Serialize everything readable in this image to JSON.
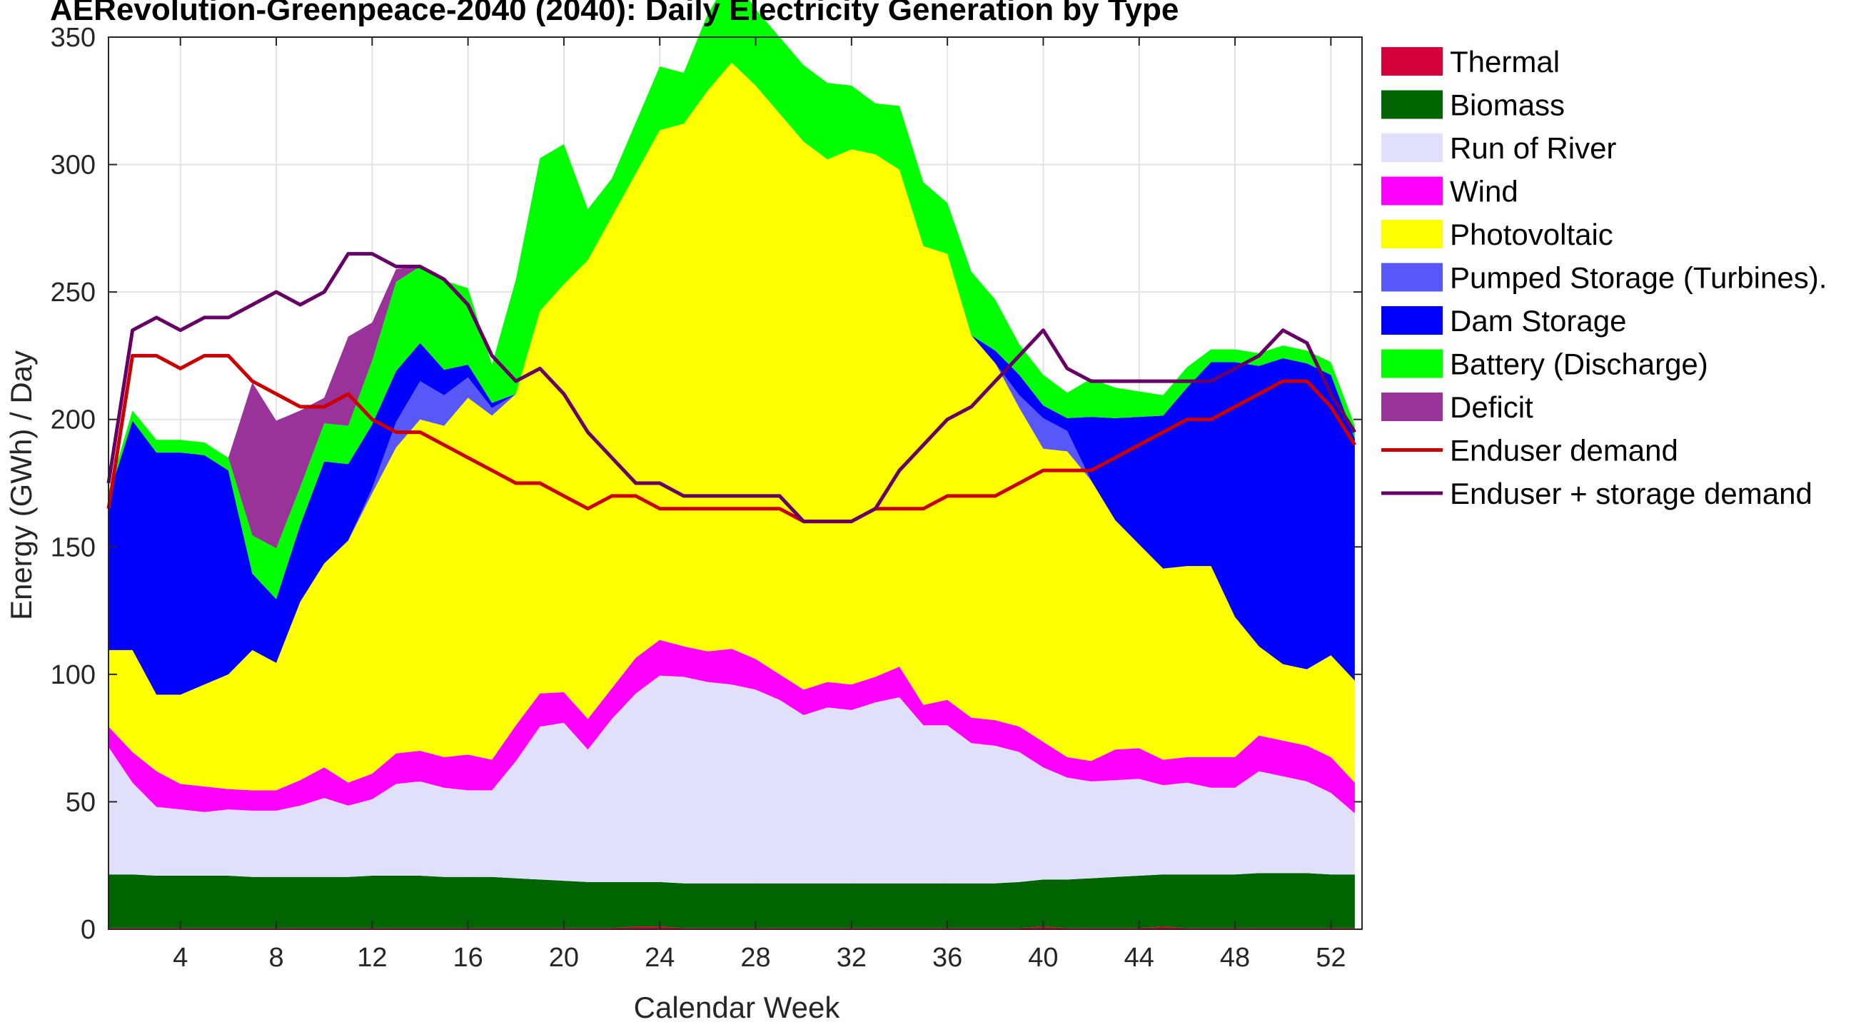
{
  "chart_data": {
    "type": "area",
    "title": "AERevolution-Greenpeace-2040 (2040): Daily Electricity Generation by Type",
    "xlabel": "Calendar Week",
    "ylabel": "Energy (GWh) / Day",
    "xlim": [
      1,
      53.3
    ],
    "ylim": [
      0,
      350
    ],
    "xticks": [
      4,
      8,
      12,
      16,
      20,
      24,
      28,
      32,
      36,
      40,
      44,
      48,
      52
    ],
    "yticks": [
      0,
      50,
      100,
      150,
      200,
      250,
      300,
      350
    ],
    "grid": true,
    "legend_position": "outside-right",
    "x_weeks": [
      1,
      2,
      3,
      4,
      5,
      6,
      7,
      8,
      9,
      10,
      11,
      12,
      13,
      14,
      15,
      16,
      17,
      18,
      19,
      20,
      21,
      22,
      23,
      24,
      25,
      26,
      27,
      28,
      29,
      30,
      31,
      32,
      33,
      34,
      35,
      36,
      37,
      38,
      39,
      40,
      41,
      42,
      43,
      44,
      45,
      46,
      47,
      48,
      49,
      50,
      51,
      52,
      53
    ],
    "series": [
      {
        "name": "Thermal",
        "color": "#d4003c",
        "kind": "area",
        "values": [
          0.5,
          0.5,
          0.5,
          0.5,
          0.5,
          0.5,
          0.5,
          0.5,
          0.5,
          0.5,
          0.5,
          0.5,
          0.5,
          0.5,
          0.5,
          0.5,
          0.5,
          0.5,
          0.5,
          0.5,
          0.5,
          0.5,
          1,
          1,
          0.5,
          0.5,
          0.5,
          0.5,
          0.5,
          0.5,
          0.5,
          0.5,
          0.5,
          0.5,
          0.5,
          0.5,
          0.5,
          0.5,
          0.5,
          1,
          0.5,
          0.5,
          0.5,
          0.5,
          1,
          0.5,
          0.5,
          0.5,
          0.5,
          0.5,
          0.5,
          0.5,
          0.5
        ]
      },
      {
        "name": "Biomass",
        "color": "#006400",
        "kind": "area",
        "values": [
          21,
          21,
          20.5,
          20.5,
          20.5,
          20.5,
          20,
          20,
          20,
          20,
          20,
          20.5,
          20.5,
          20.5,
          20,
          20,
          20,
          19.5,
          19,
          18.5,
          18,
          18,
          17.5,
          17.5,
          17.5,
          17.5,
          17.5,
          17.5,
          17.5,
          17.5,
          17.5,
          17.5,
          17.5,
          17.5,
          17.5,
          17.5,
          17.5,
          17.5,
          18,
          18.5,
          19,
          19.5,
          20,
          20.5,
          20.5,
          21,
          21,
          21,
          21.5,
          21.5,
          21.5,
          21,
          21
        ]
      },
      {
        "name": "Run of River",
        "color": "#e0e0fa",
        "kind": "area",
        "values": [
          50,
          36,
          27,
          26,
          25,
          26,
          26,
          26,
          28,
          31,
          28,
          30,
          36,
          37,
          35,
          34,
          34,
          46,
          60,
          62,
          52,
          64,
          74,
          81,
          81,
          79,
          78,
          76,
          72,
          66,
          69,
          68,
          71,
          73,
          62,
          62,
          55,
          54,
          51,
          44,
          40,
          38,
          38,
          38,
          35,
          36,
          34,
          34,
          40,
          38,
          36,
          32,
          24
        ]
      },
      {
        "name": "Wind",
        "color": "#ff00ff",
        "kind": "area",
        "values": [
          8,
          12,
          14,
          10,
          10,
          8,
          8,
          8,
          10,
          12,
          9,
          10,
          12,
          12,
          12,
          14,
          12,
          14,
          13,
          12,
          12,
          12,
          14,
          14,
          12,
          12,
          14,
          12,
          10,
          10,
          10,
          10,
          10,
          12,
          8,
          10,
          10,
          10,
          10,
          10,
          8,
          8,
          12,
          12,
          10,
          10,
          12,
          12,
          14,
          14,
          14,
          14,
          12
        ]
      },
      {
        "name": "Photovoltaic",
        "color": "#ffff00",
        "kind": "area",
        "values": [
          30,
          40,
          30,
          35,
          40,
          45,
          55,
          50,
          70,
          80,
          95,
          110,
          120,
          130,
          130,
          140,
          135,
          130,
          150,
          160,
          180,
          185,
          190,
          200,
          205,
          220,
          230,
          225,
          220,
          215,
          205,
          210,
          205,
          195,
          180,
          175,
          150,
          140,
          125,
          115,
          120,
          110,
          90,
          80,
          75,
          75,
          75,
          55,
          35,
          30,
          30,
          40,
          40
        ]
      },
      {
        "name": "Pumped Storage (Turbines).",
        "color": "#5858f8",
        "kind": "area",
        "values": [
          0,
          0,
          0,
          0,
          0,
          0,
          0,
          0,
          0,
          0,
          0,
          2,
          10,
          15,
          12,
          8,
          3,
          0,
          0,
          0,
          0,
          0,
          0,
          0,
          0,
          0,
          0,
          0,
          0,
          0,
          0,
          0,
          0,
          0,
          0,
          0,
          0,
          0,
          5,
          12,
          8,
          0,
          0,
          0,
          0,
          0,
          0,
          0,
          0,
          0,
          0,
          0,
          0
        ]
      },
      {
        "name": "Dam Storage",
        "color": "#0000ff",
        "kind": "area",
        "values": [
          60,
          90,
          95,
          95,
          90,
          80,
          30,
          25,
          30,
          40,
          30,
          25,
          20,
          15,
          10,
          5,
          2,
          0,
          0,
          0,
          0,
          0,
          0,
          0,
          0,
          0,
          0,
          0,
          0,
          0,
          0,
          0,
          0,
          0,
          0,
          0,
          0,
          5,
          8,
          5,
          5,
          25,
          40,
          50,
          60,
          70,
          80,
          100,
          110,
          120,
          120,
          110,
          95
        ]
      },
      {
        "name": "Battery (Discharge)",
        "color": "#00ff00",
        "kind": "area",
        "values": [
          2,
          4,
          5,
          5,
          5,
          5,
          15,
          20,
          15,
          15,
          15,
          25,
          35,
          30,
          35,
          30,
          15,
          45,
          60,
          55,
          20,
          15,
          20,
          25,
          20,
          30,
          35,
          30,
          30,
          30,
          30,
          25,
          20,
          25,
          25,
          20,
          25,
          20,
          12,
          12,
          10,
          15,
          12,
          10,
          8,
          8,
          5,
          5,
          5,
          5,
          5,
          5,
          5
        ]
      },
      {
        "name": "Deficit",
        "color": "#993399",
        "kind": "area",
        "values": [
          0,
          0,
          0,
          0,
          0,
          0,
          60,
          50,
          30,
          10,
          35,
          15,
          5,
          0,
          0,
          0,
          0,
          0,
          0,
          0,
          0,
          0,
          0,
          0,
          0,
          0,
          0,
          0,
          0,
          0,
          0,
          0,
          0,
          0,
          0,
          0,
          0,
          0,
          0,
          0,
          0,
          0,
          0,
          0,
          0,
          0,
          0,
          0,
          0,
          0,
          0,
          0,
          0
        ]
      },
      {
        "name": "Enduser demand",
        "color": "#cc0000",
        "kind": "line",
        "values": [
          165,
          225,
          225,
          220,
          225,
          225,
          215,
          210,
          205,
          205,
          210,
          200,
          195,
          195,
          190,
          185,
          180,
          175,
          175,
          170,
          165,
          170,
          170,
          165,
          165,
          165,
          165,
          165,
          165,
          160,
          160,
          160,
          165,
          165,
          165,
          170,
          170,
          170,
          175,
          180,
          180,
          180,
          185,
          190,
          195,
          200,
          200,
          205,
          210,
          215,
          215,
          205,
          190
        ]
      },
      {
        "name": "Enduser + storage demand",
        "color": "#660066",
        "kind": "line",
        "values": [
          175,
          235,
          240,
          235,
          240,
          240,
          245,
          250,
          245,
          250,
          265,
          265,
          260,
          260,
          255,
          245,
          225,
          215,
          220,
          210,
          195,
          185,
          175,
          175,
          170,
          170,
          170,
          170,
          170,
          160,
          160,
          160,
          165,
          180,
          190,
          200,
          205,
          215,
          225,
          235,
          220,
          215,
          215,
          215,
          215,
          215,
          215,
          220,
          225,
          235,
          230,
          210,
          195
        ]
      }
    ]
  }
}
